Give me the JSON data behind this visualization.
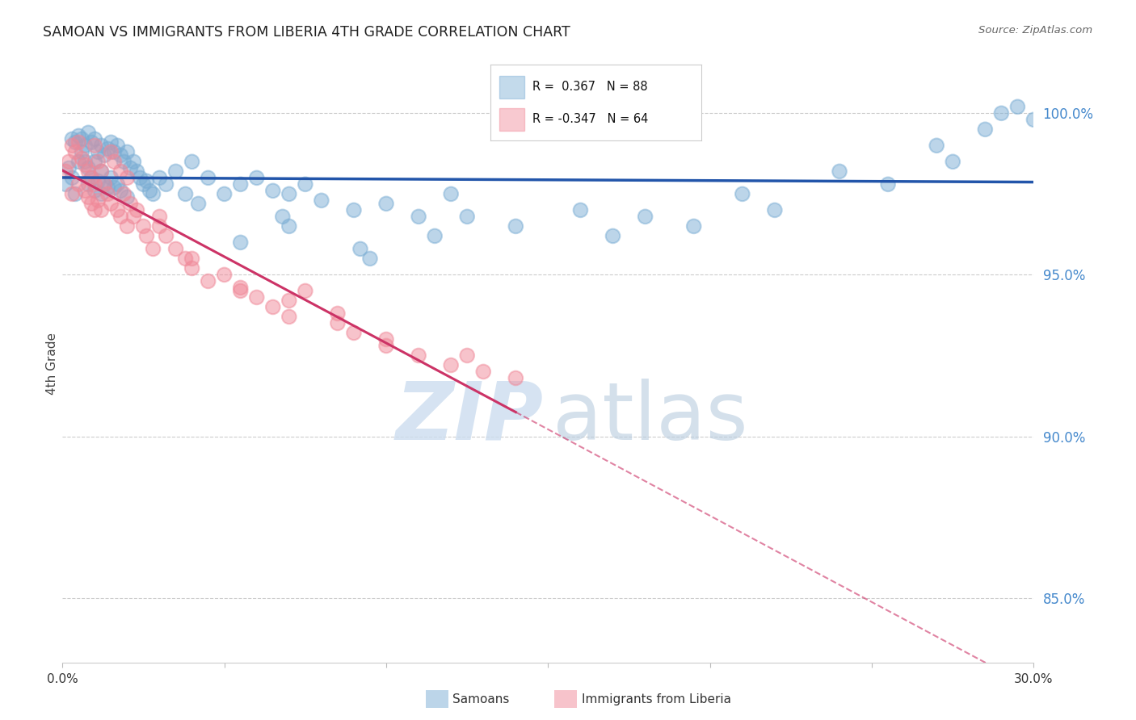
{
  "title": "SAMOAN VS IMMIGRANTS FROM LIBERIA 4TH GRADE CORRELATION CHART",
  "source": "Source: ZipAtlas.com",
  "ylabel": "4th Grade",
  "ytick_values": [
    85.0,
    90.0,
    95.0,
    100.0
  ],
  "xlim": [
    0.0,
    30.0
  ],
  "ylim": [
    83.0,
    101.5
  ],
  "legend_r_blue": "0.367",
  "legend_n_blue": "88",
  "legend_r_pink": "-0.347",
  "legend_n_pink": "64",
  "blue_fill_color": "#7aadd4",
  "blue_edge_color": "#7aadd4",
  "pink_fill_color": "#f08898",
  "pink_edge_color": "#f08898",
  "blue_line_color": "#2255aa",
  "pink_line_color": "#cc3366",
  "blue_scatter_x": [
    0.1,
    0.2,
    0.3,
    0.3,
    0.4,
    0.4,
    0.5,
    0.5,
    0.6,
    0.6,
    0.7,
    0.7,
    0.8,
    0.8,
    0.8,
    0.9,
    0.9,
    1.0,
    1.0,
    1.0,
    1.1,
    1.1,
    1.2,
    1.2,
    1.2,
    1.3,
    1.3,
    1.4,
    1.4,
    1.5,
    1.5,
    1.6,
    1.6,
    1.7,
    1.7,
    1.8,
    1.8,
    1.9,
    2.0,
    2.0,
    2.1,
    2.2,
    2.3,
    2.4,
    2.5,
    2.6,
    2.7,
    2.8,
    3.0,
    3.2,
    3.5,
    3.8,
    4.0,
    4.5,
    5.0,
    5.5,
    6.0,
    6.5,
    7.0,
    7.5,
    8.0,
    9.0,
    10.0,
    11.0,
    12.0,
    14.0,
    16.0,
    18.0,
    21.0,
    24.0,
    27.0,
    28.5,
    29.0,
    29.5,
    5.5,
    7.0,
    9.5,
    12.5,
    17.0,
    19.5,
    22.0,
    25.5,
    27.5,
    30.0,
    4.2,
    6.8,
    9.2,
    11.5
  ],
  "blue_scatter_y": [
    97.8,
    98.3,
    99.2,
    98.0,
    99.1,
    97.5,
    99.3,
    98.5,
    99.2,
    98.8,
    99.0,
    98.5,
    99.4,
    98.3,
    97.8,
    99.1,
    98.0,
    99.2,
    98.5,
    97.6,
    98.8,
    97.9,
    99.0,
    98.2,
    97.5,
    98.7,
    97.8,
    98.9,
    97.7,
    99.1,
    98.0,
    98.8,
    97.7,
    99.0,
    97.8,
    98.7,
    97.6,
    98.5,
    98.8,
    97.4,
    98.3,
    98.5,
    98.2,
    98.0,
    97.8,
    97.9,
    97.6,
    97.5,
    98.0,
    97.8,
    98.2,
    97.5,
    98.5,
    98.0,
    97.5,
    97.8,
    98.0,
    97.6,
    97.5,
    97.8,
    97.3,
    97.0,
    97.2,
    96.8,
    97.5,
    96.5,
    97.0,
    96.8,
    97.5,
    98.2,
    99.0,
    99.5,
    100.0,
    100.2,
    96.0,
    96.5,
    95.5,
    96.8,
    96.2,
    96.5,
    97.0,
    97.8,
    98.5,
    99.8,
    97.2,
    96.8,
    95.8,
    96.2
  ],
  "pink_scatter_x": [
    0.1,
    0.2,
    0.3,
    0.3,
    0.4,
    0.5,
    0.5,
    0.6,
    0.7,
    0.7,
    0.8,
    0.8,
    0.9,
    0.9,
    1.0,
    1.0,
    1.0,
    1.1,
    1.1,
    1.2,
    1.2,
    1.3,
    1.4,
    1.5,
    1.5,
    1.6,
    1.7,
    1.8,
    1.8,
    1.9,
    2.0,
    2.0,
    2.1,
    2.2,
    2.3,
    2.5,
    2.6,
    2.8,
    3.0,
    3.2,
    3.5,
    3.8,
    4.0,
    4.5,
    5.0,
    5.5,
    6.0,
    6.5,
    7.0,
    7.5,
    8.5,
    9.0,
    10.0,
    11.0,
    12.0,
    13.0,
    14.0,
    3.0,
    4.0,
    5.5,
    7.0,
    8.5,
    10.0,
    12.5
  ],
  "pink_scatter_y": [
    98.2,
    98.5,
    99.0,
    97.5,
    98.8,
    99.1,
    97.8,
    98.6,
    98.4,
    97.6,
    98.2,
    97.4,
    98.0,
    97.2,
    99.0,
    97.8,
    97.0,
    98.5,
    97.3,
    98.2,
    97.0,
    97.8,
    97.5,
    98.8,
    97.2,
    98.5,
    97.0,
    98.2,
    96.8,
    97.5,
    98.0,
    96.5,
    97.2,
    96.8,
    97.0,
    96.5,
    96.2,
    95.8,
    96.5,
    96.2,
    95.8,
    95.5,
    95.2,
    94.8,
    95.0,
    94.6,
    94.3,
    94.0,
    93.7,
    94.5,
    93.5,
    93.2,
    92.8,
    92.5,
    92.2,
    92.0,
    91.8,
    96.8,
    95.5,
    94.5,
    94.2,
    93.8,
    93.0,
    92.5
  ],
  "pink_dash_start_x": 14.0,
  "watermark_zip_color": "#ccddef",
  "watermark_atlas_color": "#b8ccdf"
}
